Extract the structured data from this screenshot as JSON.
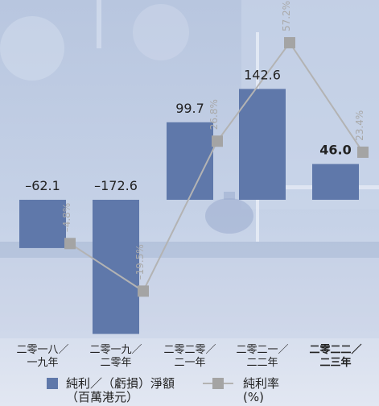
{
  "colors": {
    "bar": "#5f78aa",
    "line": "#b3b3b3",
    "marker": "#a4a4a4",
    "rate_label": "#a9a9a9",
    "text": "#222222",
    "background_top": "#b6c5df",
    "background_bottom": "#dde4f1"
  },
  "chart_data": {
    "type": "bar",
    "categories": [
      "二零一八／一九年",
      "二零一九／二零年",
      "二零二零／二一年",
      "二零二一／二二年",
      "二零二二／二三年"
    ],
    "category_lines": [
      [
        "二零一八／",
        "一九年"
      ],
      [
        "二零一九／",
        "二零年"
      ],
      [
        "二零二零／",
        "二一年"
      ],
      [
        "二零二一／",
        "二二年"
      ],
      [
        "二零二二／",
        "二三年"
      ]
    ],
    "highlight_index": 4,
    "series": [
      {
        "name": "純利／(虧損)淨額 (百萬港元)",
        "legend_lines": [
          "純利／（虧損）淨額",
          "（百萬港元）"
        ],
        "type": "bar",
        "values": [
          -62.1,
          -172.6,
          99.7,
          142.6,
          46.0
        ],
        "value_labels": [
          "–62.1",
          "–172.6",
          "99.7",
          "142.6",
          "46.0"
        ]
      },
      {
        "name": "純利率 (%)",
        "legend_lines": [
          "純利率",
          "(%)"
        ],
        "type": "line",
        "values": [
          -4.8,
          -19.5,
          26.8,
          57.2,
          23.4
        ],
        "value_labels": [
          "–4.8%",
          "–19.5%",
          "26.8%",
          "57.2%",
          "23.4%"
        ]
      }
    ],
    "grid": false,
    "legend_position": "bottom"
  }
}
